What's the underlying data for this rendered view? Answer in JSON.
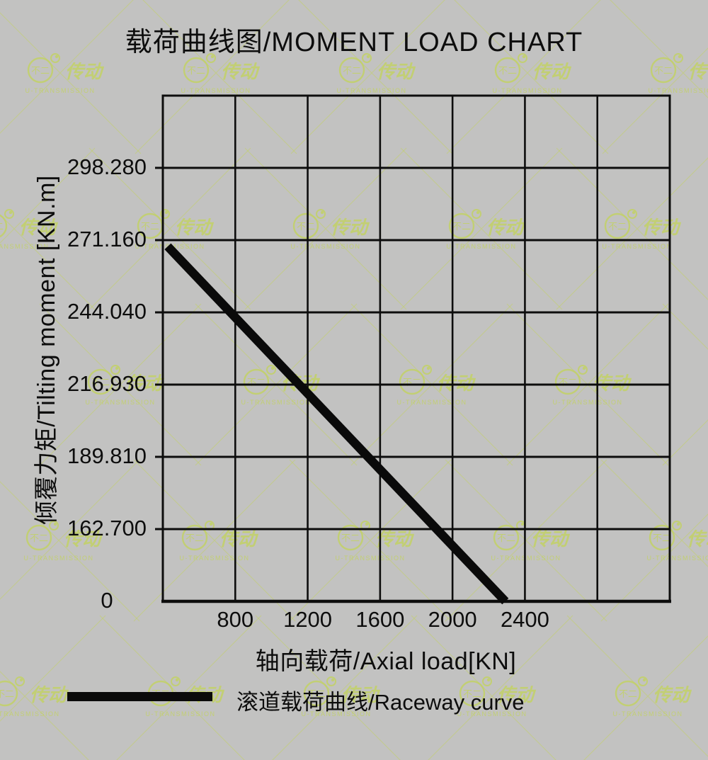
{
  "page": {
    "background_color": "#c2c2c1",
    "ink_color": "#0d0d0d"
  },
  "chart_data": {
    "type": "line",
    "title": "载荷曲线图/MOMENT LOAD CHART",
    "xlabel": "轴向载荷/Axial load[KN]",
    "ylabel": "倾覆力矩/Tilting moment [KN.m]",
    "x_ticks": [
      800,
      1200,
      1600,
      2000,
      2400
    ],
    "y_ticks": [
      298.28,
      271.16,
      244.04,
      216.93,
      189.81,
      162.7,
      0
    ],
    "y_tick_labels": [
      "298.280",
      "271.160",
      "244.040",
      "216.930",
      "189.810",
      "162.700",
      "0"
    ],
    "x_per_division": 400,
    "y_per_division": 27.12,
    "grid": {
      "columns": 7,
      "rows": 7,
      "visible": true,
      "note": "uniform grid; bottom row is a scale break from 162.700 down to 0; columns continue unlabeled past 2400"
    },
    "xlim_labeled": [
      800,
      2400
    ],
    "ylim_labeled": [
      0,
      298.28
    ],
    "series": [
      {
        "name": "滚道载荷曲线/Raceway curve",
        "color": "#0a0a0a",
        "stroke_width": 12.5,
        "points": [
          [
            427,
            268.8
          ],
          [
            2292,
            0
          ]
        ]
      }
    ],
    "legend_position": "bottom-left"
  },
  "watermark": {
    "logo_text": "不二",
    "brand_script": "传动",
    "caption": "U-TRANSMISSION",
    "color": "#c2d266"
  }
}
